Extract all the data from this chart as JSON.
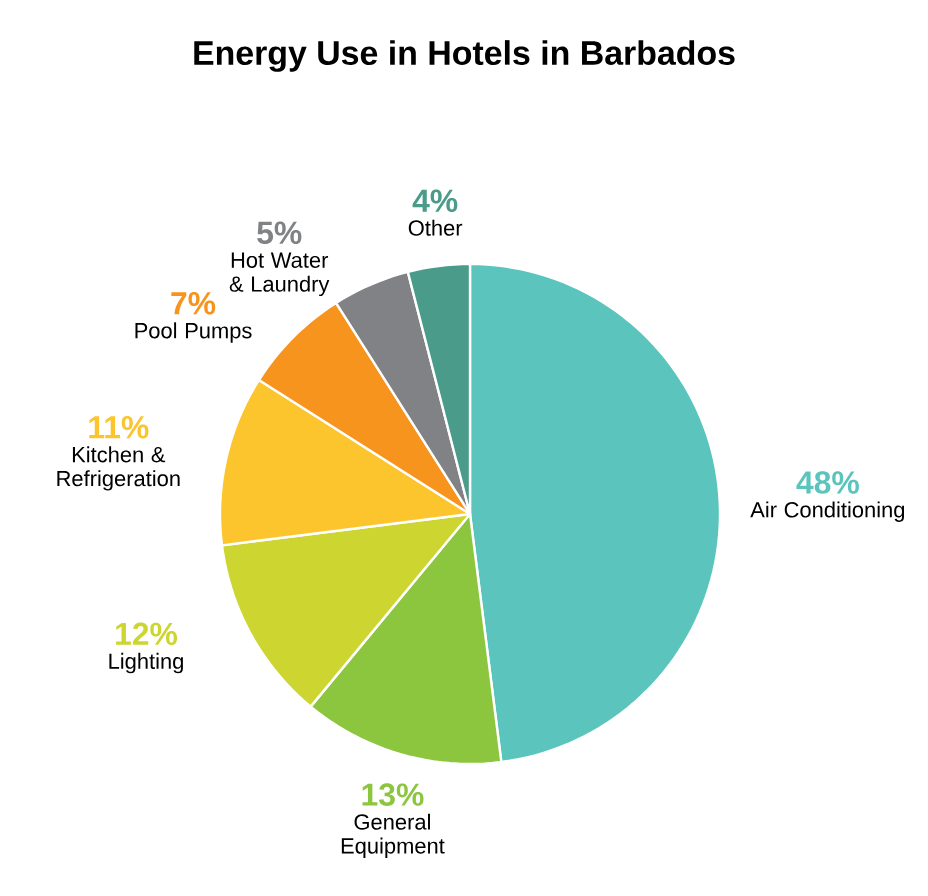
{
  "chart_data": {
    "type": "pie",
    "title": "Energy Use in Hotels in Barbados",
    "categories": [
      "Air Conditioning",
      "General Equipment",
      "Lighting",
      "Kitchen & Refrigeration",
      "Pool Pumps",
      "Hot Water & Laundry",
      "Other"
    ],
    "values": [
      48,
      13,
      12,
      11,
      7,
      5,
      4
    ],
    "value_labels": [
      "48%",
      "13%",
      "12%",
      "11%",
      "7%",
      "5%",
      "4%"
    ],
    "colors": [
      "#5bc5bd",
      "#8cc63f",
      "#cdd531",
      "#fcc42d",
      "#f7941d",
      "#808285",
      "#4a9b8a"
    ]
  }
}
